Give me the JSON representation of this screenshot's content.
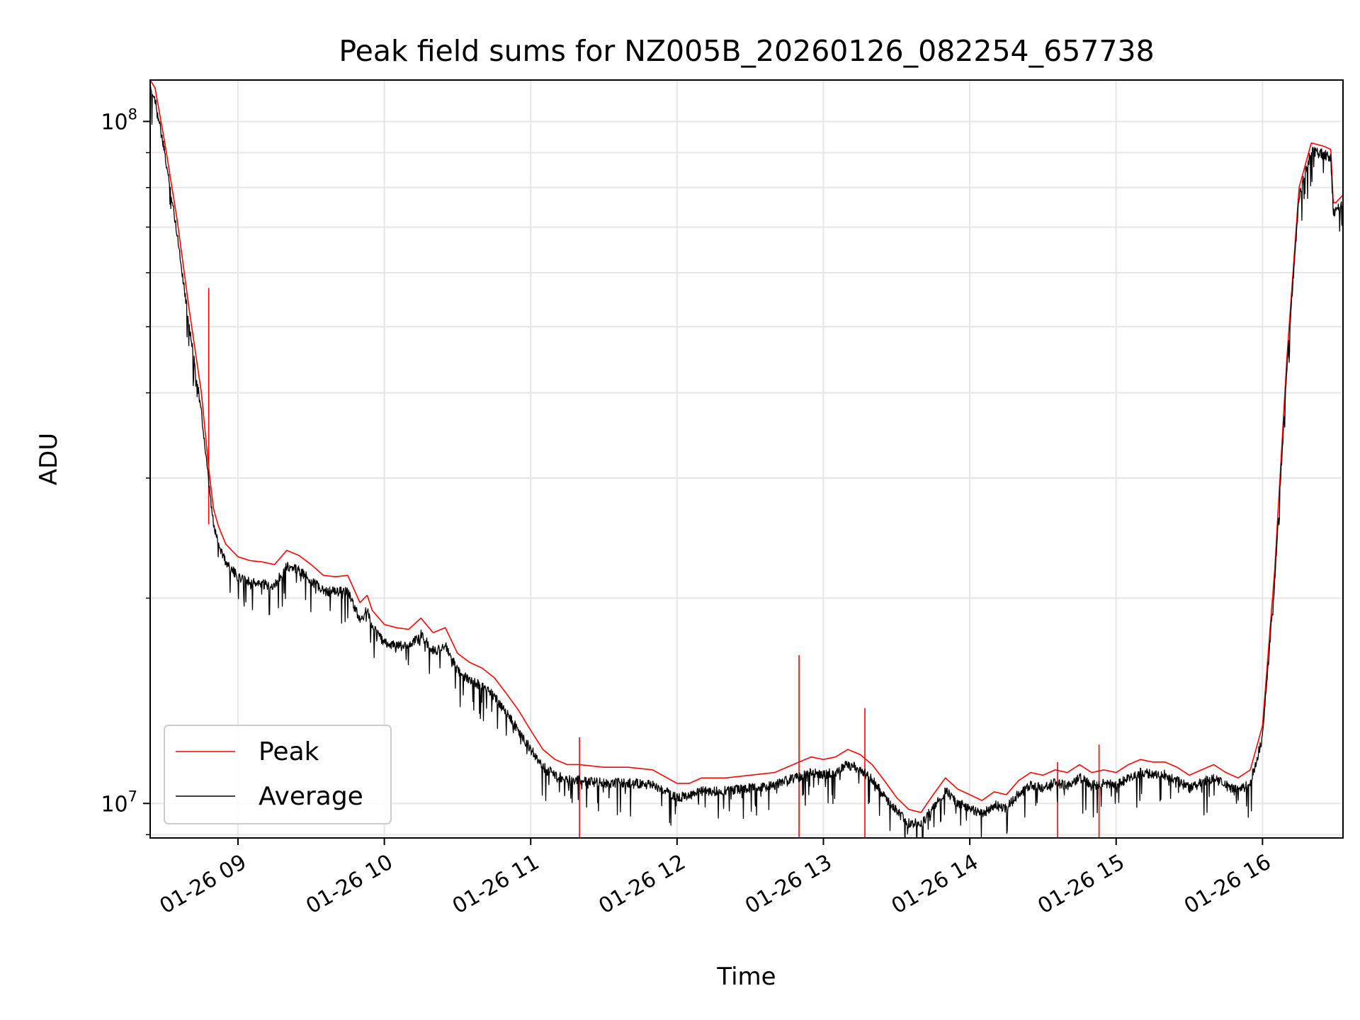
{
  "chart_data": {
    "type": "line",
    "title": "Peak field sums for NZ005B_20260126_082254_657738",
    "xlabel": "Time",
    "ylabel": "ADU",
    "yscale": "log",
    "grid": true,
    "legend_position": "lower-left",
    "xlim": [
      "01-26 08:24",
      "01-26 16:33"
    ],
    "ylim": [
      8900000,
      115000000
    ],
    "x_ticks": [
      "01-26 09",
      "01-26 10",
      "01-26 11",
      "01-26 12",
      "01-26 13",
      "01-26 14",
      "01-26 15",
      "01-26 16"
    ],
    "y_ticks": [
      {
        "base": "10",
        "exp": "7",
        "value": 10000000
      },
      {
        "base": "10",
        "exp": "8",
        "value": 100000000
      }
    ],
    "colors": {
      "peak": "#ff0000",
      "average": "#000000",
      "grid": "#e6e6e6"
    },
    "series": [
      {
        "name": "Peak",
        "x": [
          "08:24",
          "08:26",
          "08:30",
          "08:35",
          "08:40",
          "08:45",
          "08:48",
          "08:50",
          "08:52",
          "08:55",
          "09:00",
          "09:05",
          "09:10",
          "09:15",
          "09:20",
          "09:25",
          "09:30",
          "09:35",
          "09:40",
          "09:45",
          "09:50",
          "09:53",
          "09:55",
          "10:00",
          "10:05",
          "10:10",
          "10:15",
          "10:20",
          "10:25",
          "10:30",
          "10:35",
          "10:40",
          "10:45",
          "10:50",
          "10:55",
          "11:00",
          "11:05",
          "11:10",
          "11:15",
          "11:20",
          "11:30",
          "11:40",
          "11:50",
          "12:00",
          "12:05",
          "12:10",
          "12:20",
          "12:30",
          "12:40",
          "12:45",
          "12:50",
          "12:55",
          "13:00",
          "13:05",
          "13:10",
          "13:15",
          "13:20",
          "13:25",
          "13:30",
          "13:35",
          "13:40",
          "13:45",
          "13:50",
          "13:55",
          "14:00",
          "14:05",
          "14:10",
          "14:15",
          "14:20",
          "14:25",
          "14:30",
          "14:35",
          "14:40",
          "14:45",
          "14:50",
          "14:55",
          "15:00",
          "15:05",
          "15:10",
          "15:15",
          "15:20",
          "15:25",
          "15:30",
          "15:35",
          "15:40",
          "15:45",
          "15:50",
          "15:55",
          "16:00",
          "16:05",
          "16:10",
          "16:15",
          "16:20",
          "16:25",
          "16:28",
          "16:29",
          "16:30",
          "16:33"
        ],
        "y": [
          115000000,
          112000000,
          93000000,
          72000000,
          53000000,
          40000000,
          31000000,
          27000000,
          25500000,
          24000000,
          23000000,
          22700000,
          22600000,
          22400000,
          23500000,
          23100000,
          22400000,
          21600000,
          21500000,
          21600000,
          19700000,
          20200000,
          19200000,
          18300000,
          18100000,
          18000000,
          18700000,
          17800000,
          18100000,
          16600000,
          16100000,
          15800000,
          15300000,
          14500000,
          13700000,
          12800000,
          12000000,
          11600000,
          11400000,
          11400000,
          11300000,
          11300000,
          11200000,
          10700000,
          10700000,
          10900000,
          10900000,
          11000000,
          11100000,
          11300000,
          11500000,
          11700000,
          11600000,
          11700000,
          12000000,
          11800000,
          11400000,
          10800000,
          10200000,
          9800000,
          9700000,
          10300000,
          10900000,
          10500000,
          10300000,
          10100000,
          10400000,
          10300000,
          10800000,
          11100000,
          11000000,
          11200000,
          11100000,
          11400000,
          11100000,
          11200000,
          11100000,
          11400000,
          11600000,
          11500000,
          11500000,
          11300000,
          11000000,
          11200000,
          11400000,
          11100000,
          10900000,
          11200000,
          13000000,
          22000000,
          45000000,
          80000000,
          93000000,
          92000000,
          91000000,
          76000000,
          76000000,
          78000000
        ],
        "spikes": [
          {
            "x": "08:48",
            "y": 57000000
          },
          {
            "x": "11:20",
            "y": 12500000
          },
          {
            "x": "12:50",
            "y": 16500000
          },
          {
            "x": "13:17",
            "y": 13800000
          },
          {
            "x": "14:36",
            "y": 11500000
          },
          {
            "x": "14:53",
            "y": 12200000
          }
        ]
      },
      {
        "name": "Average",
        "x": [
          "08:24",
          "08:26",
          "08:30",
          "08:35",
          "08:40",
          "08:45",
          "08:48",
          "08:50",
          "08:52",
          "08:55",
          "09:00",
          "09:05",
          "09:10",
          "09:15",
          "09:20",
          "09:25",
          "09:30",
          "09:35",
          "09:40",
          "09:45",
          "09:50",
          "09:53",
          "09:55",
          "10:00",
          "10:05",
          "10:10",
          "10:15",
          "10:20",
          "10:25",
          "10:30",
          "10:35",
          "10:40",
          "10:45",
          "10:50",
          "10:55",
          "11:00",
          "11:05",
          "11:10",
          "11:15",
          "11:20",
          "11:30",
          "11:40",
          "11:50",
          "12:00",
          "12:05",
          "12:10",
          "12:20",
          "12:30",
          "12:40",
          "12:45",
          "12:50",
          "12:55",
          "13:00",
          "13:05",
          "13:10",
          "13:15",
          "13:20",
          "13:25",
          "13:30",
          "13:35",
          "13:40",
          "13:45",
          "13:50",
          "13:55",
          "14:00",
          "14:05",
          "14:10",
          "14:15",
          "14:20",
          "14:25",
          "14:30",
          "14:35",
          "14:40",
          "14:45",
          "14:50",
          "14:55",
          "15:00",
          "15:05",
          "15:10",
          "15:15",
          "15:20",
          "15:25",
          "15:30",
          "15:35",
          "15:40",
          "15:45",
          "15:50",
          "15:55",
          "16:00",
          "16:05",
          "16:10",
          "16:15",
          "16:20",
          "16:25",
          "16:28",
          "16:29",
          "16:30",
          "16:33"
        ],
        "y": [
          113000000,
          110000000,
          91000000,
          70000000,
          51000000,
          38000000,
          30000000,
          26000000,
          24500000,
          23000000,
          21800000,
          21500000,
          21300000,
          21200000,
          22700000,
          22300000,
          21600000,
          20800000,
          20800000,
          20800000,
          18900000,
          19500000,
          18500000,
          17500000,
          17300000,
          17300000,
          18000000,
          17000000,
          17300000,
          15900000,
          15400000,
          15100000,
          14600000,
          13800000,
          13000000,
          12200000,
          11500000,
          11200000,
          11000000,
          11000000,
          10900000,
          10900000,
          10800000,
          10400000,
          10400000,
          10600000,
          10600000,
          10700000,
          10800000,
          11000000,
          11100000,
          11300000,
          11200000,
          11300000,
          11600000,
          11400000,
          11000000,
          10400000,
          9900000,
          9500000,
          9500000,
          10000000,
          10600000,
          10200000,
          10000000,
          9800000,
          10100000,
          10000000,
          10500000,
          10800000,
          10700000,
          10900000,
          10800000,
          11100000,
          10800000,
          10900000,
          10800000,
          11100000,
          11300000,
          11200000,
          11200000,
          11000000,
          10700000,
          10900000,
          11100000,
          10800000,
          10600000,
          10900000,
          12700000,
          21500000,
          44000000,
          79000000,
          92000000,
          91000000,
          90000000,
          75000000,
          75000000,
          77000000
        ]
      }
    ]
  }
}
